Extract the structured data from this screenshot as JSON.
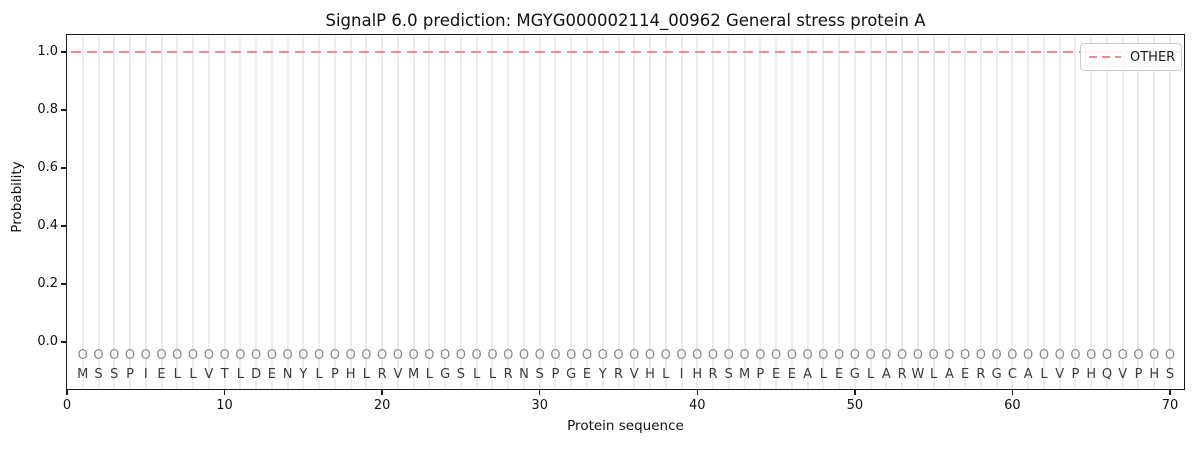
{
  "figure": {
    "title": "SignalP 6.0 prediction: MGYG000002114_00962 General stress protein A",
    "xlabel": "Protein sequence",
    "ylabel": "Probability",
    "legend": {
      "entries": [
        {
          "label": "OTHER",
          "line_style": "dashed",
          "color": "#f38b8b"
        }
      ]
    }
  },
  "colors": {
    "other_line": "#f38b8b",
    "gridline": "#ededed",
    "spine": "#1a1a1a",
    "residue_letter": "#3a3a3a",
    "residue_marker": "#8a8a8a",
    "background": "#ffffff"
  },
  "chart_data": {
    "type": "line",
    "title": "SignalP 6.0 prediction: MGYG000002114_00962 General stress protein A",
    "xlabel": "Protein sequence",
    "ylabel": "Probability",
    "xlim": [
      0,
      71
    ],
    "ylim": [
      -0.17,
      1.07
    ],
    "x_ticks": [
      0,
      10,
      20,
      30,
      40,
      50,
      60,
      70
    ],
    "y_ticks": [
      0.0,
      0.2,
      0.4,
      0.6,
      0.8,
      1.0
    ],
    "grid": "vertical line at every residue position",
    "legend_position": "upper right",
    "series": [
      {
        "name": "OTHER",
        "style": "dashed",
        "color": "#f38b8b",
        "x": [
          1,
          2,
          3,
          4,
          5,
          6,
          7,
          8,
          9,
          10,
          11,
          12,
          13,
          14,
          15,
          16,
          17,
          18,
          19,
          20,
          21,
          22,
          23,
          24,
          25,
          26,
          27,
          28,
          29,
          30,
          31,
          32,
          33,
          34,
          35,
          36,
          37,
          38,
          39,
          40,
          41,
          42,
          43,
          44,
          45,
          46,
          47,
          48,
          49,
          50,
          51,
          52,
          53,
          54,
          55,
          56,
          57,
          58,
          59,
          60,
          61,
          62,
          63,
          64,
          65,
          66,
          67,
          68,
          69,
          70
        ],
        "values": [
          1.0,
          1.0,
          1.0,
          1.0,
          1.0,
          1.0,
          1.0,
          1.0,
          1.0,
          1.0,
          1.0,
          1.0,
          1.0,
          1.0,
          1.0,
          1.0,
          1.0,
          1.0,
          1.0,
          1.0,
          1.0,
          1.0,
          1.0,
          1.0,
          1.0,
          1.0,
          1.0,
          1.0,
          1.0,
          1.0,
          1.0,
          1.0,
          1.0,
          1.0,
          1.0,
          1.0,
          1.0,
          1.0,
          1.0,
          1.0,
          1.0,
          1.0,
          1.0,
          1.0,
          1.0,
          1.0,
          1.0,
          1.0,
          1.0,
          1.0,
          1.0,
          1.0,
          1.0,
          1.0,
          1.0,
          1.0,
          1.0,
          1.0,
          1.0,
          1.0,
          1.0,
          1.0,
          1.0,
          1.0,
          1.0,
          1.0,
          1.0,
          1.0,
          1.0,
          1.0
        ]
      }
    ],
    "sequence": "MSSPIELLVTLDENYLPHLRVMLGSLLRNSPGEYRVHLIHRSMPEEALEGLARWLAERGCALVPHQVPHS",
    "residue_marker": "O",
    "sequence_length": 70
  }
}
